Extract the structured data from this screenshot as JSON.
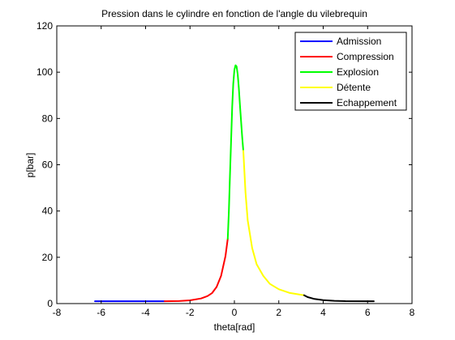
{
  "chart_data": {
    "type": "line",
    "title": "Pression dans le cylindre en fonction de l'angle du vilebrequin",
    "xlabel": "theta[rad]",
    "ylabel": "p[bar]",
    "xlim": [
      -8,
      8
    ],
    "ylim": [
      0,
      120
    ],
    "xticks": [
      -8,
      -6,
      -4,
      -2,
      0,
      2,
      4,
      6,
      8
    ],
    "yticks": [
      0,
      20,
      40,
      60,
      80,
      100,
      120
    ],
    "xtick_labels": [
      "-8",
      "-6",
      "-4",
      "-2",
      "0",
      "2",
      "4",
      "6",
      "8"
    ],
    "ytick_labels": [
      "0",
      "20",
      "40",
      "60",
      "80",
      "100",
      "120"
    ],
    "grid": false,
    "legend_position": "top-right",
    "series": [
      {
        "name": "Admission",
        "color": "#0000ff",
        "points": [
          [
            -6.28,
            1.0
          ],
          [
            -3.14,
            1.0
          ]
        ]
      },
      {
        "name": "Compression",
        "color": "#ff0000",
        "points": [
          [
            -3.14,
            1.0
          ],
          [
            -2.5,
            1.1
          ],
          [
            -2.0,
            1.4
          ],
          [
            -1.5,
            2.2
          ],
          [
            -1.2,
            3.3
          ],
          [
            -1.0,
            4.6
          ],
          [
            -0.8,
            7.2
          ],
          [
            -0.6,
            12.0
          ],
          [
            -0.4,
            20.5
          ],
          [
            -0.3,
            28.0
          ]
        ]
      },
      {
        "name": "Explosion",
        "color": "#00ff00",
        "points": [
          [
            -0.3,
            28.0
          ],
          [
            -0.25,
            40.0
          ],
          [
            -0.2,
            55.0
          ],
          [
            -0.15,
            70.0
          ],
          [
            -0.1,
            85.0
          ],
          [
            -0.05,
            95.0
          ],
          [
            0.0,
            101.0
          ],
          [
            0.05,
            103.0
          ],
          [
            0.1,
            102.5
          ],
          [
            0.15,
            99.0
          ],
          [
            0.2,
            93.0
          ],
          [
            0.25,
            86.0
          ],
          [
            0.3,
            79.0
          ],
          [
            0.35,
            72.0
          ],
          [
            0.4,
            66.0
          ]
        ]
      },
      {
        "name": "Détente",
        "color": "#ffff00",
        "points": [
          [
            0.4,
            66.0
          ],
          [
            0.5,
            48.0
          ],
          [
            0.6,
            36.0
          ],
          [
            0.8,
            24.0
          ],
          [
            1.0,
            17.0
          ],
          [
            1.3,
            12.0
          ],
          [
            1.6,
            8.5
          ],
          [
            2.0,
            6.2
          ],
          [
            2.5,
            4.6
          ],
          [
            3.14,
            3.6
          ]
        ]
      },
      {
        "name": "Echappement",
        "color": "#000000",
        "points": [
          [
            3.14,
            3.6
          ],
          [
            3.3,
            2.8
          ],
          [
            3.6,
            2.0
          ],
          [
            4.0,
            1.5
          ],
          [
            4.5,
            1.2
          ],
          [
            5.0,
            1.05
          ],
          [
            6.28,
            1.0
          ]
        ]
      }
    ]
  }
}
